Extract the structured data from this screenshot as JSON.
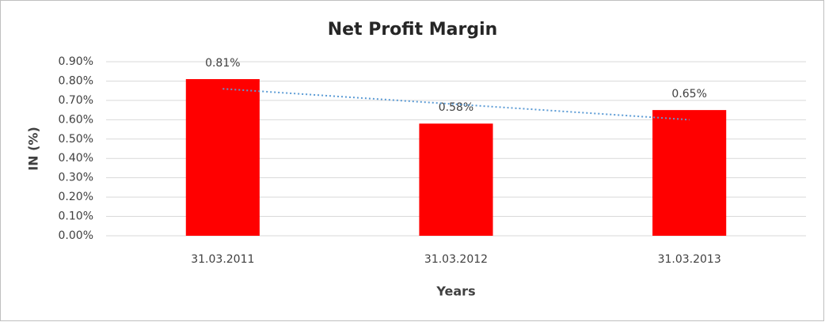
{
  "chart_data": {
    "type": "bar",
    "title": "Net Profit Margin",
    "x_label": "Years",
    "y_label": "IN (%)",
    "categories": [
      "31.03.2011",
      "31.03.2012",
      "31.03.2013"
    ],
    "values": [
      0.81,
      0.58,
      0.65
    ],
    "value_labels": [
      "0.81%",
      "0.58%",
      "0.65%"
    ],
    "color": "#ff0000",
    "trendline": {
      "type": "linear",
      "color": "#5b9bd5"
    },
    "ylim": [
      0,
      0.9
    ],
    "yticks": [
      {
        "value": 0,
        "label": "0.00%"
      },
      {
        "value": 0.1,
        "label": "0.10%"
      },
      {
        "value": 0.2,
        "label": "0.20%"
      },
      {
        "value": 0.3,
        "label": "0.30%"
      },
      {
        "value": 0.4,
        "label": "0.40%"
      },
      {
        "value": 0.5,
        "label": "0.50%"
      },
      {
        "value": 0.6,
        "label": "0.60%"
      },
      {
        "value": 0.7,
        "label": "0.70%"
      },
      {
        "value": 0.8,
        "label": "0.80%"
      },
      {
        "value": 0.9,
        "label": "0.90%"
      }
    ],
    "grid": true
  }
}
